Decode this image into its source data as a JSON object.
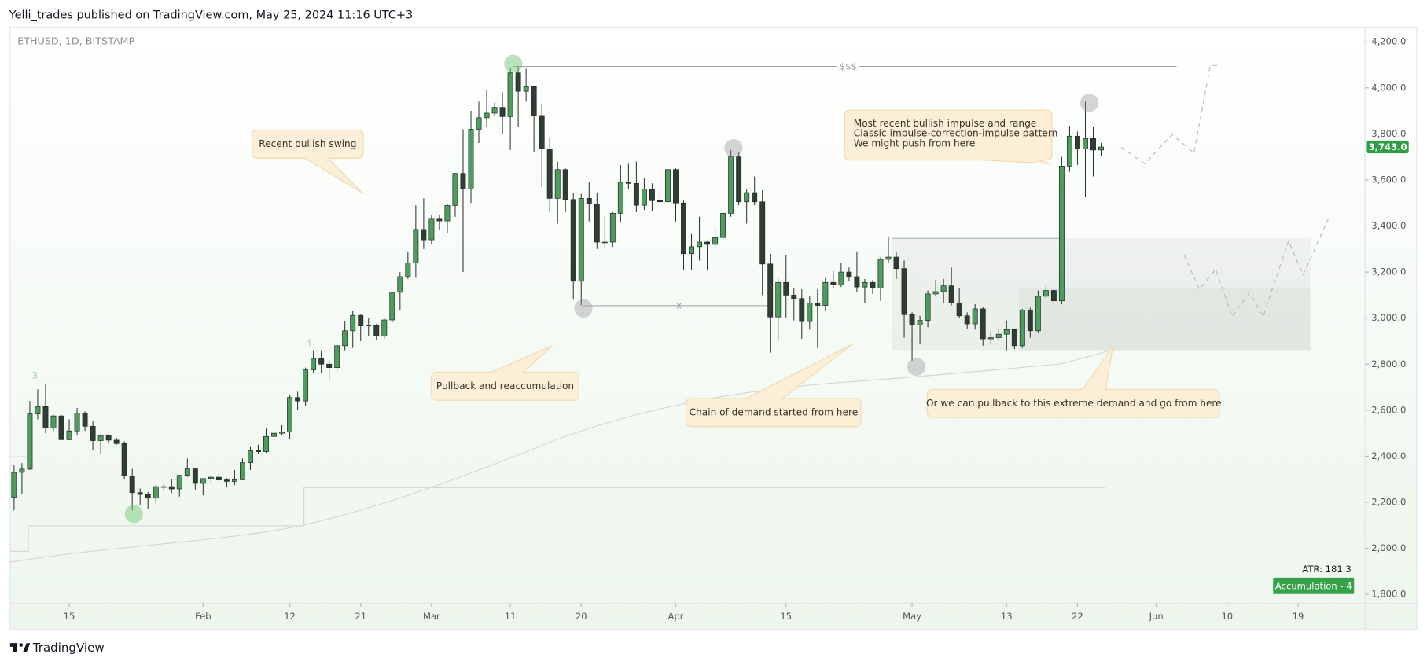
{
  "header": {
    "publisher": "Yelli_trades published on TradingView.com, May 25, 2024 11:16 UTC+3"
  },
  "chart_data": {
    "type": "candlestick",
    "title": "ETHUSD, 1D, BITSTAMP",
    "x": [
      "Jan 8",
      "Jan 9",
      "Jan 10",
      "Jan 11",
      "Jan 12",
      "Jan 13",
      "Jan 14",
      "Jan 15",
      "Jan 16",
      "Jan 17",
      "Jan 18",
      "Jan 19",
      "Jan 20",
      "Jan 21",
      "Jan 22",
      "Jan 23",
      "Jan 24",
      "Jan 25",
      "Jan 26",
      "Jan 27",
      "Jan 28",
      "Jan 29",
      "Jan 30",
      "Jan 31",
      "Feb 1",
      "Feb 2",
      "Feb 3",
      "Feb 4",
      "Feb 5",
      "Feb 6",
      "Feb 7",
      "Feb 8",
      "Feb 9",
      "Feb 10",
      "Feb 11",
      "Feb 12",
      "Feb 13",
      "Feb 14",
      "Feb 15",
      "Feb 16",
      "Feb 17",
      "Feb 18",
      "Feb 19",
      "Feb 20",
      "Feb 21",
      "Feb 22",
      "Feb 23",
      "Feb 24",
      "Feb 25",
      "Feb 26",
      "Feb 27",
      "Feb 28",
      "Feb 29",
      "Mar 1",
      "Mar 2",
      "Mar 3",
      "Mar 4",
      "Mar 5",
      "Mar 6",
      "Mar 7",
      "Mar 8",
      "Mar 9",
      "Mar 10",
      "Mar 11",
      "Mar 12",
      "Mar 13",
      "Mar 14",
      "Mar 15",
      "Mar 16",
      "Mar 17",
      "Mar 18",
      "Mar 19",
      "Mar 20",
      "Mar 21",
      "Mar 22",
      "Mar 23",
      "Mar 24",
      "Mar 25",
      "Mar 26",
      "Mar 27",
      "Mar 28",
      "Mar 29",
      "Mar 30",
      "Mar 31",
      "Apr 1",
      "Apr 2",
      "Apr 3",
      "Apr 4",
      "Apr 5",
      "Apr 6",
      "Apr 7",
      "Apr 8",
      "Apr 9",
      "Apr 10",
      "Apr 11",
      "Apr 12",
      "Apr 13",
      "Apr 14",
      "Apr 15",
      "Apr 16",
      "Apr 17",
      "Apr 18",
      "Apr 19",
      "Apr 20",
      "Apr 21",
      "Apr 22",
      "Apr 23",
      "Apr 24",
      "Apr 25",
      "Apr 26",
      "Apr 27",
      "Apr 28",
      "Apr 29",
      "Apr 30",
      "May 1",
      "May 2",
      "May 3",
      "May 4",
      "May 5",
      "May 6",
      "May 7",
      "May 8",
      "May 9",
      "May 10",
      "May 11",
      "May 12",
      "May 13",
      "May 14",
      "May 15",
      "May 16",
      "May 17",
      "May 18",
      "May 19",
      "May 20",
      "May 21",
      "May 22",
      "May 23",
      "May 24",
      "May 25"
    ],
    "open": [
      2222,
      2330,
      2344,
      2584,
      2616,
      2522,
      2575,
      2472,
      2510,
      2587,
      2530,
      2468,
      2490,
      2470,
      2455,
      2315,
      2242,
      2234,
      2218,
      2268,
      2268,
      2258,
      2317,
      2345,
      2282,
      2303,
      2309,
      2297,
      2291,
      2298,
      2372,
      2424,
      2420,
      2486,
      2500,
      2505,
      2655,
      2640,
      2775,
      2825,
      2800,
      2785,
      2880,
      2945,
      3012,
      2966,
      2970,
      2922,
      2992,
      3112,
      3180,
      3240,
      3385,
      3340,
      3433,
      3422,
      3489,
      3628,
      3560,
      3820,
      3870,
      3890,
      3915,
      3875,
      4065,
      3985,
      4005,
      3880,
      3735,
      3520,
      3645,
      3515,
      3160,
      3520,
      3495,
      3330,
      3330,
      3455,
      3590,
      3585,
      3490,
      3560,
      3510,
      3505,
      3645,
      3500,
      3280,
      3310,
      3330,
      3320,
      3350,
      3455,
      3700,
      3505,
      3545,
      3505,
      3235,
      3005,
      3155,
      3100,
      3085,
      2985,
      3065,
      3055,
      3155,
      3145,
      3200,
      3180,
      3135,
      3155,
      3130,
      3255,
      3265,
      3215,
      3015,
      2970,
      2990,
      3105,
      3115,
      3140,
      3065,
      3010,
      2975,
      3040,
      2910,
      2915,
      2930,
      2950,
      2880,
      3035,
      2945,
      3095,
      3120,
      3075,
      3660,
      3790,
      3735,
      3780,
      3730
    ],
    "high": [
      2360,
      2370,
      2640,
      2690,
      2715,
      2580,
      2580,
      2560,
      2610,
      2595,
      2555,
      2495,
      2495,
      2480,
      2465,
      2345,
      2260,
      2245,
      2275,
      2280,
      2300,
      2320,
      2390,
      2350,
      2305,
      2320,
      2325,
      2305,
      2340,
      2390,
      2440,
      2450,
      2520,
      2520,
      2535,
      2665,
      2680,
      2785,
      2860,
      2860,
      2820,
      2885,
      2985,
      3030,
      3015,
      3000,
      2975,
      3000,
      3115,
      3200,
      3290,
      3490,
      3520,
      3450,
      3450,
      3495,
      3630,
      3820,
      3900,
      3940,
      3990,
      3935,
      3980,
      4085,
      4095,
      4083,
      4010,
      3930,
      3785,
      3680,
      3650,
      3545,
      3540,
      3590,
      3545,
      3440,
      3460,
      3665,
      3670,
      3680,
      3610,
      3585,
      3560,
      3650,
      3650,
      3510,
      3365,
      3440,
      3335,
      3395,
      3460,
      3730,
      3720,
      3560,
      3615,
      3555,
      3280,
      3170,
      3275,
      3130,
      3125,
      3095,
      3125,
      3175,
      3205,
      3240,
      3220,
      3290,
      3170,
      3165,
      3265,
      3355,
      3285,
      3250,
      3025,
      3010,
      3120,
      3165,
      3170,
      3220,
      3130,
      3025,
      3060,
      3050,
      2940,
      2955,
      2990,
      2955,
      3040,
      3045,
      3120,
      3145,
      3125,
      3700,
      3835,
      3810,
      3940,
      3830,
      3760
    ],
    "low": [
      2165,
      2235,
      2340,
      2560,
      2500,
      2510,
      2470,
      2470,
      2490,
      2510,
      2425,
      2410,
      2460,
      2450,
      2300,
      2165,
      2190,
      2170,
      2195,
      2250,
      2240,
      2225,
      2310,
      2255,
      2230,
      2280,
      2290,
      2265,
      2275,
      2295,
      2340,
      2410,
      2415,
      2470,
      2490,
      2475,
      2600,
      2620,
      2760,
      2760,
      2730,
      2770,
      2860,
      2870,
      2900,
      2920,
      2905,
      2910,
      2980,
      3035,
      3170,
      3175,
      3300,
      3320,
      3385,
      3370,
      3440,
      3200,
      3500,
      3760,
      3830,
      3880,
      3800,
      3730,
      3830,
      3940,
      3720,
      3570,
      3460,
      3410,
      3460,
      3080,
      3055,
      3420,
      3300,
      3300,
      3310,
      3415,
      3560,
      3460,
      3470,
      3465,
      3495,
      3495,
      3420,
      3210,
      3210,
      3250,
      3210,
      3300,
      3340,
      3440,
      3490,
      3410,
      3490,
      3100,
      2850,
      2900,
      3000,
      2990,
      2910,
      2950,
      2870,
      3030,
      3130,
      3135,
      3160,
      3115,
      3065,
      3105,
      3075,
      3240,
      3170,
      2915,
      2815,
      2890,
      2960,
      3095,
      3065,
      3055,
      3000,
      2955,
      2950,
      2880,
      2890,
      2905,
      2860,
      2865,
      2870,
      2915,
      2935,
      3085,
      3055,
      3060,
      3635,
      3665,
      3525,
      3615,
      3705
    ],
    "close": [
      2330,
      2344,
      2584,
      2616,
      2522,
      2575,
      2472,
      2510,
      2587,
      2530,
      2468,
      2490,
      2470,
      2455,
      2315,
      2242,
      2234,
      2218,
      2268,
      2268,
      2258,
      2317,
      2345,
      2282,
      2303,
      2309,
      2297,
      2291,
      2298,
      2372,
      2424,
      2420,
      2486,
      2500,
      2505,
      2655,
      2640,
      2775,
      2825,
      2800,
      2785,
      2880,
      2945,
      3012,
      2966,
      2970,
      2922,
      2992,
      3112,
      3180,
      3240,
      3385,
      3340,
      3433,
      3422,
      3489,
      3628,
      3560,
      3820,
      3870,
      3890,
      3915,
      3875,
      4065,
      3985,
      4005,
      3880,
      3735,
      3520,
      3645,
      3515,
      3160,
      3520,
      3495,
      3330,
      3330,
      3455,
      3590,
      3585,
      3490,
      3560,
      3510,
      3505,
      3645,
      3500,
      3280,
      3310,
      3330,
      3320,
      3350,
      3455,
      3700,
      3505,
      3545,
      3505,
      3235,
      3005,
      3155,
      3100,
      3085,
      2985,
      3065,
      3055,
      3155,
      3145,
      3200,
      3180,
      3135,
      3155,
      3130,
      3255,
      3265,
      3215,
      3015,
      2970,
      2990,
      3105,
      3115,
      3140,
      3065,
      3010,
      2975,
      3040,
      2910,
      2915,
      2930,
      2950,
      2880,
      3035,
      2945,
      3095,
      3120,
      3075,
      3660,
      3790,
      3735,
      3780,
      3730,
      3743
    ],
    "up_color": "#4e9d5e",
    "down_color": "#2f3d34",
    "ylim": [
      1762,
      4263
    ],
    "yticks": [
      {
        "value": 1800,
        "label": "1,800.0"
      },
      {
        "value": 2000,
        "label": "2,000.0"
      },
      {
        "value": 2200,
        "label": "2,200.0"
      },
      {
        "value": 2400,
        "label": "2,400.0"
      },
      {
        "value": 2600,
        "label": "2,600.0"
      },
      {
        "value": 2800,
        "label": "2,800.0"
      },
      {
        "value": 3000,
        "label": "3,000.0"
      },
      {
        "value": 3200,
        "label": "3,200.0"
      },
      {
        "value": 3400,
        "label": "3,400.0"
      },
      {
        "value": 3600,
        "label": "3,600.0"
      },
      {
        "value": 3800,
        "label": "3,800.0"
      },
      {
        "value": 4000,
        "label": "4,000.0"
      },
      {
        "value": 4200,
        "label": "4,200.0"
      }
    ],
    "xlim": [
      -0.5,
      171.5
    ],
    "xticks": [
      {
        "value": 7,
        "label": "15"
      },
      {
        "value": 24,
        "label": "Feb"
      },
      {
        "value": 35,
        "label": "12"
      },
      {
        "value": 44,
        "label": "21"
      },
      {
        "value": 53,
        "label": "Mar"
      },
      {
        "value": 63,
        "label": "11"
      },
      {
        "value": 72,
        "label": "20"
      },
      {
        "value": 84,
        "label": "Apr"
      },
      {
        "value": 98,
        "label": "15"
      },
      {
        "value": 114,
        "label": "May"
      },
      {
        "value": 126,
        "label": "13"
      },
      {
        "value": 135,
        "label": "22"
      },
      {
        "value": 145,
        "label": "Jun"
      },
      {
        "value": 154,
        "label": "10"
      },
      {
        "value": 163,
        "label": "19"
      }
    ],
    "last_price": {
      "value": 3743,
      "label": "3,743.0"
    },
    "annotations": [
      "Recent bullish swing",
      "Pullback and reaccumulation",
      "Chain of demand started from here",
      "Or we can pullback to this extreme demand and go from here",
      [
        "Most recent bullish impulse and range",
        "Classic impulse-correction-impulse pattern",
        "We might push from here"
      ]
    ],
    "markers": [
      "3",
      "4"
    ],
    "level_labels": [
      "$$$",
      "x"
    ],
    "indicators": {
      "atr": "ATR: 181.3",
      "study": "Accumulation - 4"
    }
  },
  "footer": {
    "brand": "TradingView"
  }
}
